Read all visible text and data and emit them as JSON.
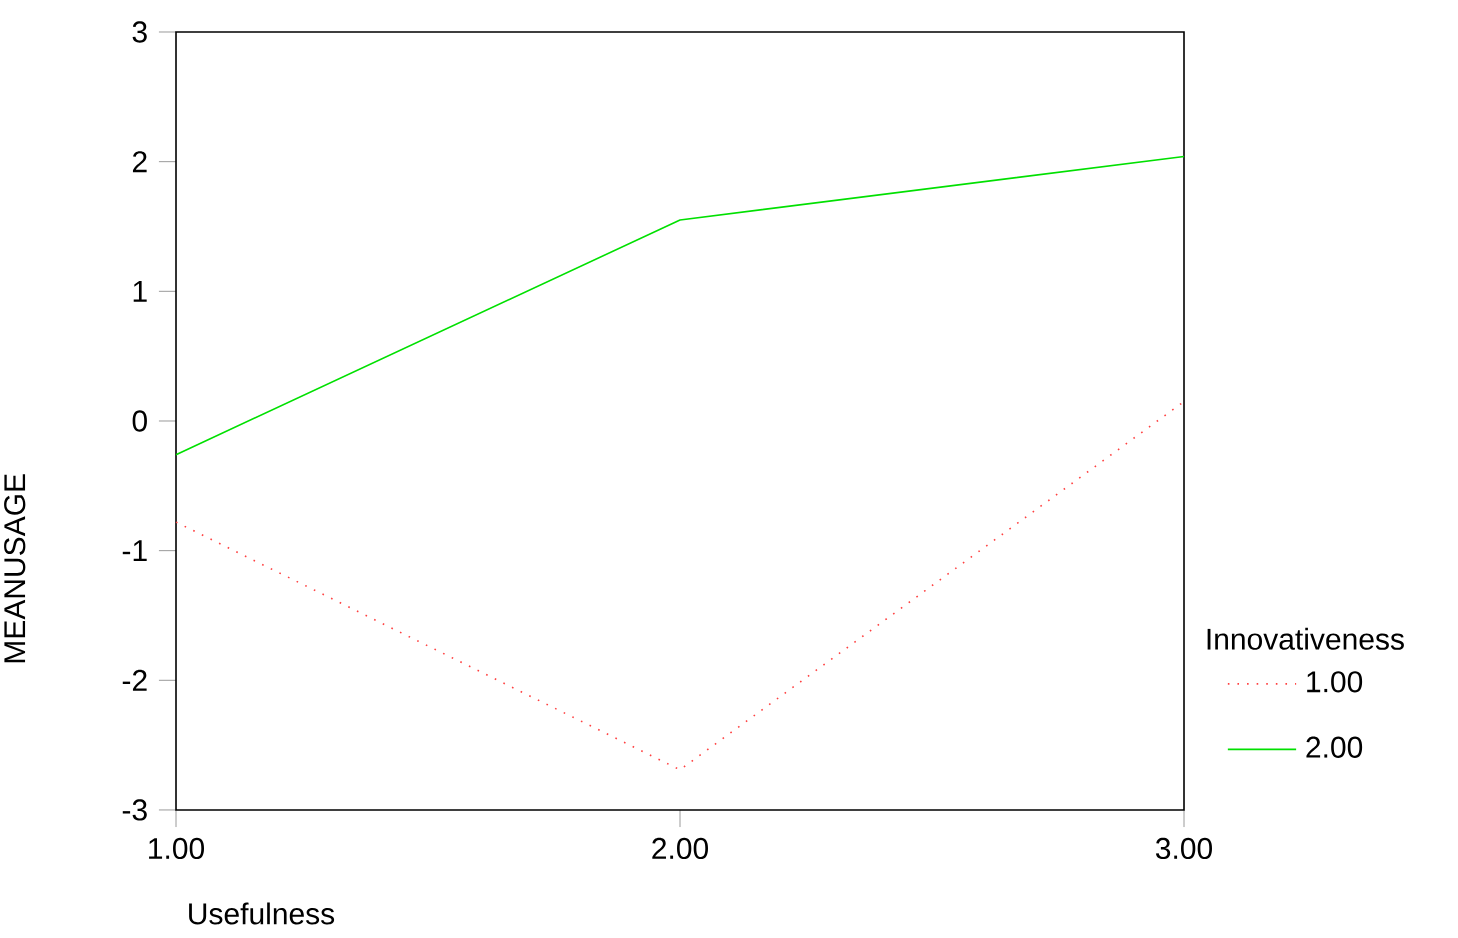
{
  "chart_data": {
    "type": "line",
    "xlabel": "Usefulness",
    "ylabel": "MEANUSAGE",
    "legend_title": "Innovativeness",
    "x": [
      1,
      2,
      3
    ],
    "series": [
      {
        "name": "1.00",
        "color": "#ff4040",
        "values": [
          -0.78,
          -2.69,
          0.15
        ],
        "line_style": "dotted"
      },
      {
        "name": "2.00",
        "color": "#00e000",
        "values": [
          -0.26,
          1.55,
          2.04
        ],
        "line_style": "solid"
      }
    ],
    "xlim": [
      1,
      3
    ],
    "ylim": [
      -3,
      3
    ],
    "xticks": [
      {
        "value": 1,
        "label": "1.00"
      },
      {
        "value": 2,
        "label": "2.00"
      },
      {
        "value": 3,
        "label": "3.00"
      }
    ],
    "yticks": [
      -3,
      -2,
      -1,
      0,
      1,
      2,
      3
    ],
    "grid": false,
    "legend": "right",
    "marker": "none"
  }
}
